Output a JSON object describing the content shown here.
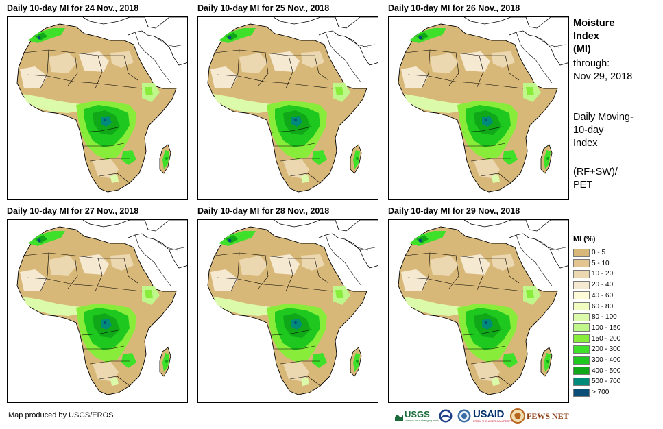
{
  "panels": [
    {
      "title": "Daily 10-day MI for 24 Nov., 2018"
    },
    {
      "title": "Daily 10-day MI for 25 Nov., 2018"
    },
    {
      "title": "Daily 10-day MI for 26 Nov., 2018"
    },
    {
      "title": "Daily 10-day MI for 27 Nov., 2018"
    },
    {
      "title": "Daily 10-day MI for 28 Nov., 2018"
    },
    {
      "title": "Daily 10-day MI for 29 Nov., 2018"
    }
  ],
  "side_info": {
    "title_line1": "Moisture",
    "title_line2": "Index",
    "title_line3": "(MI)",
    "through_label": "through:",
    "through_date": "Nov 29, 2018",
    "method_line1": "Daily Moving-",
    "method_line2": "10-day",
    "method_line3": "Index",
    "formula_line1": "(RF+SW)/",
    "formula_line2": "PET"
  },
  "legend": {
    "title": "MI (%)",
    "items": [
      {
        "label": "0 - 5",
        "color": "#d8b878"
      },
      {
        "label": "5 - 10",
        "color": "#e2c590"
      },
      {
        "label": "10 - 20",
        "color": "#ecd8b0"
      },
      {
        "label": "20 - 40",
        "color": "#f6e9d2"
      },
      {
        "label": "40 - 60",
        "color": "#fdfbd8"
      },
      {
        "label": "60 - 80",
        "color": "#f0fcc0"
      },
      {
        "label": "80 - 100",
        "color": "#dcfbaa"
      },
      {
        "label": "100 - 150",
        "color": "#bff78a"
      },
      {
        "label": "150 - 200",
        "color": "#88ec3a"
      },
      {
        "label": "200 - 300",
        "color": "#3fe02a"
      },
      {
        "label": "300 - 400",
        "color": "#1ec81e"
      },
      {
        "label": "400 - 500",
        "color": "#10a818"
      },
      {
        "label": "500 - 700",
        "color": "#008a7a"
      },
      {
        "label": "> 700",
        "color": "#0a4e78"
      }
    ]
  },
  "footer": {
    "credit": "Map produced by USGS/EROS",
    "logo_usgs": "USGS",
    "logo_usgs_tagline": "science for a changing world",
    "logo_usaid": "USAID",
    "logo_usaid_tagline": "FROM THE AMERICAN PEOPLE",
    "logo_fews": "FEWS NET"
  }
}
